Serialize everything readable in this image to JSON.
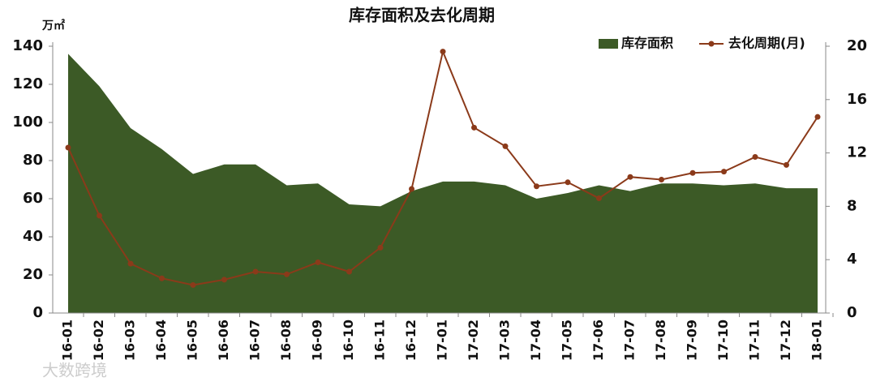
{
  "chart_data": {
    "type": "area",
    "title": "库存面积及去化周期",
    "y_unit": "万㎡",
    "watermark": "大数跨境",
    "categories": [
      "16-01",
      "16-02",
      "16-03",
      "16-04",
      "16-05",
      "16-06",
      "16-07",
      "16-08",
      "16-09",
      "16-10",
      "16-11",
      "16-12",
      "17-01",
      "17-02",
      "17-03",
      "17-04",
      "17-05",
      "17-06",
      "17-07",
      "17-08",
      "17-09",
      "17-10",
      "17-11",
      "17-12",
      "18-01"
    ],
    "series": [
      {
        "name": "库存面积",
        "type": "area",
        "color": "#3c5a26",
        "values": [
          136,
          119,
          97,
          86,
          73,
          78,
          78,
          67,
          68,
          57,
          56,
          64,
          69,
          69,
          67,
          60,
          63,
          67,
          64,
          68,
          68,
          67,
          68,
          65.5,
          65.5
        ]
      },
      {
        "name": "去化周期(月)",
        "type": "line",
        "axis": "y2",
        "color": "#8b3a1a",
        "values": [
          12.4,
          7.3,
          3.7,
          2.6,
          2.1,
          2.5,
          3.1,
          2.9,
          3.8,
          3.1,
          4.9,
          9.3,
          19.6,
          13.9,
          12.5,
          9.5,
          9.8,
          8.6,
          10.2,
          10.0,
          10.5,
          10.6,
          11.7,
          11.1,
          14.7
        ]
      }
    ],
    "ylim": [
      0,
      140
    ],
    "yticks": [
      0,
      20,
      40,
      60,
      80,
      100,
      120,
      140
    ],
    "y2lim": [
      0,
      20
    ],
    "y2ticks": [
      0,
      4,
      8,
      12,
      16,
      20
    ],
    "legend": "top-right"
  }
}
